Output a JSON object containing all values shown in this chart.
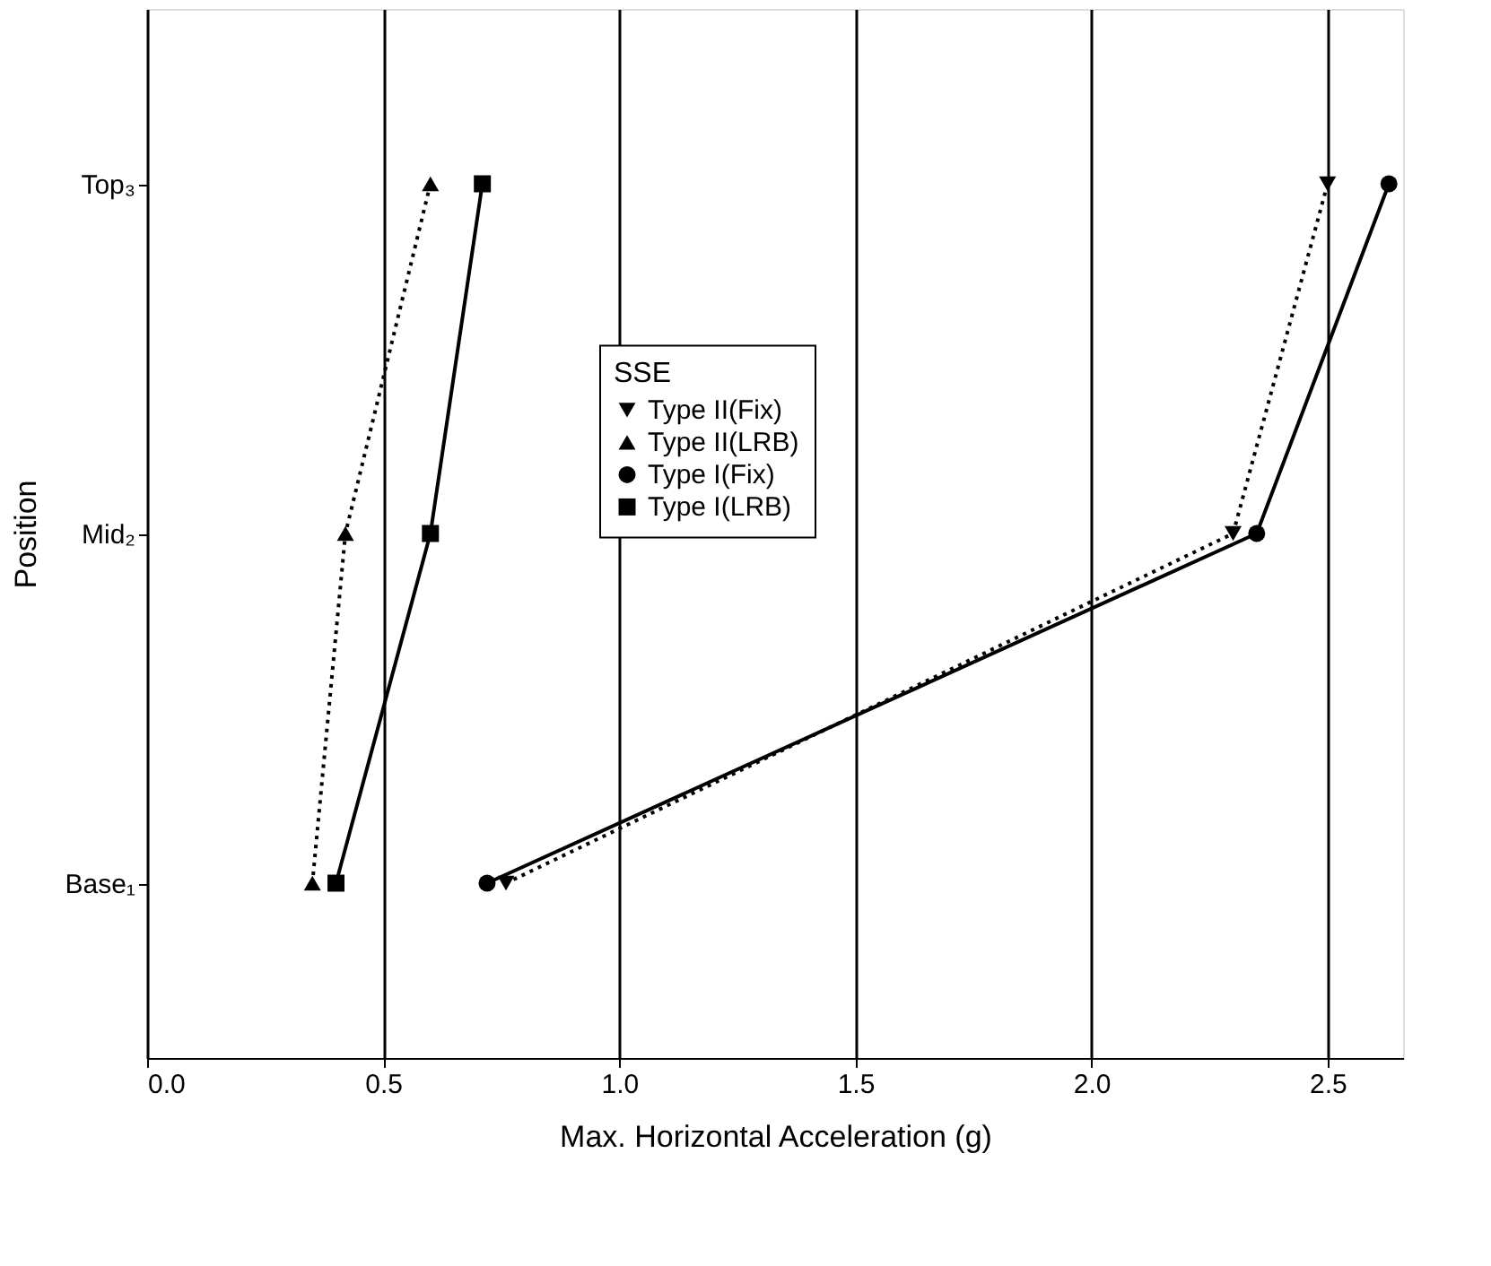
{
  "chart_data": {
    "type": "line",
    "orientation": "horizontal",
    "xlabel": "Max. Horizontal Acceleration (g)",
    "ylabel": "Position",
    "legend_title": "SSE",
    "legend": "center",
    "grid": "x",
    "categories": [
      "Top₃",
      "Mid₂",
      "Base₁"
    ],
    "xlim": [
      0,
      2.66
    ],
    "xticks": [
      {
        "value": 0,
        "label": "0.0"
      },
      {
        "value": 0.5,
        "label": "0.5"
      },
      {
        "value": 1,
        "label": "1.0"
      },
      {
        "value": 1.5,
        "label": "1.5"
      },
      {
        "value": 2,
        "label": "2.0"
      },
      {
        "value": 2.5,
        "label": "2.5"
      }
    ],
    "series": [
      {
        "name": "Type II(Fix)",
        "color": "#000000",
        "marker": "triangle-down",
        "line_style": "dotted",
        "values": [
          2.5,
          2.3,
          0.76
        ]
      },
      {
        "name": "Type II(LRB)",
        "color": "#000000",
        "marker": "triangle",
        "line_style": "dotted",
        "values": [
          0.6,
          0.42,
          0.35
        ]
      },
      {
        "name": "Type I(Fix)",
        "color": "#000000",
        "marker": "circle",
        "line_style": "solid",
        "values": [
          2.63,
          2.35,
          0.72
        ]
      },
      {
        "name": "Type I(LRB)",
        "color": "#000000",
        "marker": "square",
        "line_style": "solid",
        "values": [
          0.71,
          0.6,
          0.4
        ]
      }
    ]
  }
}
